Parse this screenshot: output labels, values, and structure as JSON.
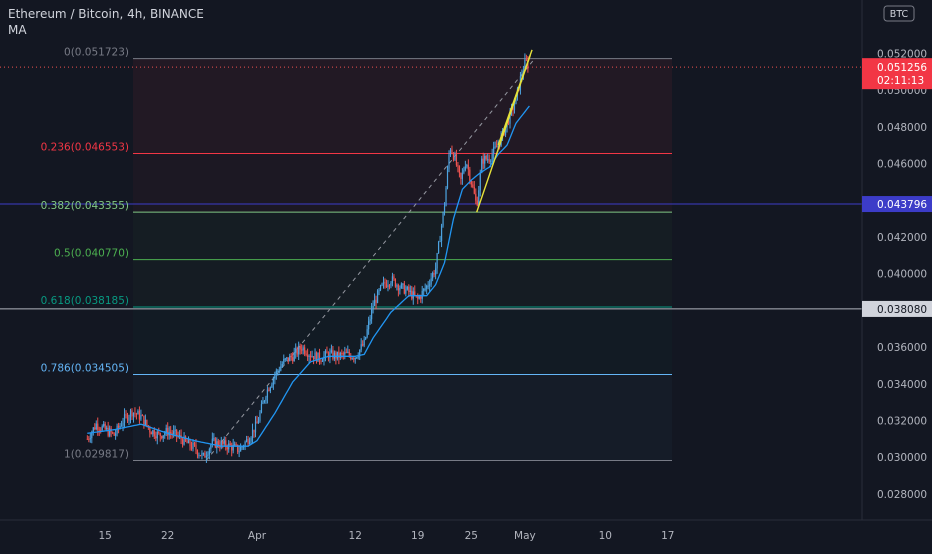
{
  "header": {
    "symbol_line": "Ethereum / Bitcoin, 4h, BINANCE",
    "indicator": "MA"
  },
  "currency_badge": "BTC",
  "colors": {
    "background": "#131722",
    "up": "#4da3e0",
    "down": "#ef5350",
    "ma": "#2196f3",
    "trendline": "#e6e13a",
    "fib_0": "#787b86",
    "fib_236": "#f23645",
    "fib_382": "#81c784",
    "fib_5": "#4caf50",
    "fib_618": "#089981",
    "fib_786": "#64b5f6",
    "fib_1": "#787b86",
    "last_price_bg": "#f23645",
    "horiz_line_blue": "#3c3cc8",
    "horiz_line_grey": "#b2b5be"
  },
  "fib_levels": [
    {
      "label": "0(0.051723)",
      "value": 0.051723,
      "key": "fib_0"
    },
    {
      "label": "0.236(0.046553)",
      "value": 0.046553,
      "key": "fib_236"
    },
    {
      "label": "0.382(0.043355)",
      "value": 0.043355,
      "key": "fib_382"
    },
    {
      "label": "0.5(0.040770)",
      "value": 0.04077,
      "key": "fib_5"
    },
    {
      "label": "0.618(0.038185)",
      "value": 0.038185,
      "key": "fib_618"
    },
    {
      "label": "0.786(0.034505)",
      "value": 0.034505,
      "key": "fib_786"
    },
    {
      "label": "1(0.029817)",
      "value": 0.029817,
      "key": "fib_1"
    }
  ],
  "price_axis": {
    "ticks": [
      "0.052000",
      "0.050000",
      "0.048000",
      "0.046000",
      "0.044000",
      "0.042000",
      "0.040000",
      "0.038000",
      "0.036000",
      "0.034000",
      "0.032000",
      "0.030000",
      "0.028000"
    ],
    "tick_values": [
      0.052,
      0.05,
      0.048,
      0.046,
      0.044,
      0.042,
      0.04,
      0.038,
      0.036,
      0.034,
      0.032,
      0.03,
      0.028
    ]
  },
  "price_labels": {
    "last_price": "0.051256",
    "countdown": "02:11:13",
    "blue_line": "0.043796",
    "grey_line": "0.038080"
  },
  "price_levels": {
    "last_price": 0.051256,
    "blue_line": 0.043796,
    "grey_line": 0.03808
  },
  "time_axis": {
    "labels": [
      "15",
      "22",
      "Apr",
      "12",
      "19",
      "25",
      "May",
      "10",
      "17"
    ],
    "days": [
      -17,
      -10,
      0,
      11,
      18,
      24,
      30,
      39,
      46
    ]
  },
  "chart_data": {
    "type": "candlestick",
    "title": "Ethereum / Bitcoin, 4h, BINANCE",
    "series_name": "MA",
    "y_range": [
      0.0267,
      0.0535
    ],
    "x_range_days": [
      -19,
      50
    ],
    "trend_start": {
      "day": -5.7,
      "price": 0.029817
    },
    "trend_end": {
      "day": 27.9,
      "price": 0.051723
    },
    "trend_extended_end": {
      "day": 30.9,
      "price": 0.0516
    },
    "wedge_lower": [
      {
        "day": 24.6,
        "price": 0.04335
      },
      {
        "day": 30.6,
        "price": 0.0519
      }
    ],
    "wedge_upper": [
      {
        "day": 27.0,
        "price": 0.047
      },
      {
        "day": 30.8,
        "price": 0.0522
      }
    ],
    "close_anchors": [
      [
        -19,
        0.031
      ],
      [
        -18,
        0.0318
      ],
      [
        -17,
        0.0315
      ],
      [
        -16,
        0.0312
      ],
      [
        -15,
        0.032
      ],
      [
        -14,
        0.0325
      ],
      [
        -13,
        0.0322
      ],
      [
        -12,
        0.0315
      ],
      [
        -11,
        0.0312
      ],
      [
        -10,
        0.0314
      ],
      [
        -9,
        0.0312
      ],
      [
        -8,
        0.0308
      ],
      [
        -7,
        0.0305
      ],
      [
        -6,
        0.03
      ],
      [
        -5,
        0.0308
      ],
      [
        -4,
        0.0307
      ],
      [
        -3,
        0.0306
      ],
      [
        -2,
        0.0304
      ],
      [
        -1,
        0.031
      ],
      [
        0,
        0.0318
      ],
      [
        1,
        0.0335
      ],
      [
        2,
        0.0345
      ],
      [
        3,
        0.0352
      ],
      [
        4,
        0.0355
      ],
      [
        5,
        0.036
      ],
      [
        6,
        0.0356
      ],
      [
        7,
        0.0354
      ],
      [
        8,
        0.0356
      ],
      [
        9,
        0.0355
      ],
      [
        10,
        0.0356
      ],
      [
        11,
        0.0355
      ],
      [
        12,
        0.0362
      ],
      [
        13,
        0.0383
      ],
      [
        14,
        0.0393
      ],
      [
        15,
        0.0397
      ],
      [
        16,
        0.0393
      ],
      [
        17,
        0.039
      ],
      [
        18,
        0.0386
      ],
      [
        19,
        0.0393
      ],
      [
        20,
        0.0403
      ],
      [
        21,
        0.0438
      ],
      [
        21.6,
        0.047
      ],
      [
        22.2,
        0.0462
      ],
      [
        22.8,
        0.045
      ],
      [
        23.4,
        0.0462
      ],
      [
        24.0,
        0.045
      ],
      [
        24.6,
        0.0437
      ],
      [
        25.2,
        0.0462
      ],
      [
        26,
        0.0463
      ],
      [
        27,
        0.047
      ],
      [
        28,
        0.0482
      ],
      [
        29,
        0.0495
      ],
      [
        29.6,
        0.0508
      ],
      [
        30.1,
        0.0516
      ],
      [
        30.4,
        0.05126
      ]
    ],
    "ma_anchors": [
      [
        -19,
        0.0313
      ],
      [
        -16,
        0.0315
      ],
      [
        -13,
        0.0318
      ],
      [
        -10,
        0.0313
      ],
      [
        -7,
        0.0309
      ],
      [
        -4,
        0.0306
      ],
      [
        -1,
        0.0306
      ],
      [
        0,
        0.0309
      ],
      [
        2,
        0.0324
      ],
      [
        4,
        0.0341
      ],
      [
        6,
        0.0352
      ],
      [
        8,
        0.0355
      ],
      [
        11,
        0.0355
      ],
      [
        12,
        0.0356
      ],
      [
        13,
        0.0365
      ],
      [
        15,
        0.0379
      ],
      [
        17,
        0.0388
      ],
      [
        19,
        0.0388
      ],
      [
        20,
        0.0394
      ],
      [
        21,
        0.0406
      ],
      [
        22,
        0.043
      ],
      [
        23,
        0.0446
      ],
      [
        24,
        0.0451
      ],
      [
        25,
        0.0455
      ],
      [
        26,
        0.0458
      ],
      [
        27,
        0.0465
      ],
      [
        28,
        0.047
      ],
      [
        29,
        0.0482
      ],
      [
        30.6,
        0.0492
      ]
    ]
  }
}
